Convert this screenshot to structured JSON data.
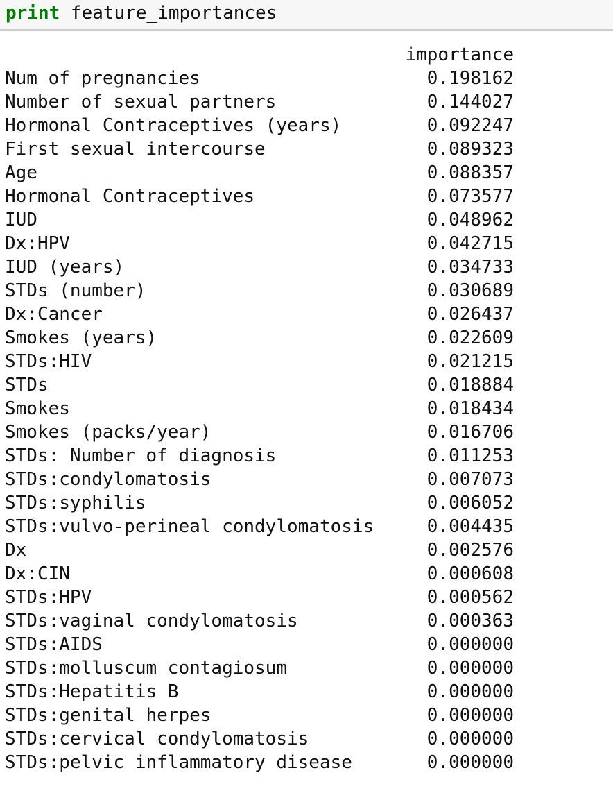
{
  "code": {
    "keyword": "print",
    "statement": " feature_importances"
  },
  "output": {
    "header": "importance",
    "rows": [
      {
        "feature": "Num of pregnancies",
        "importance": "0.198162"
      },
      {
        "feature": "Number of sexual partners",
        "importance": "0.144027"
      },
      {
        "feature": "Hormonal Contraceptives (years)",
        "importance": "0.092247"
      },
      {
        "feature": "First sexual intercourse",
        "importance": "0.089323"
      },
      {
        "feature": "Age",
        "importance": "0.088357"
      },
      {
        "feature": "Hormonal Contraceptives",
        "importance": "0.073577"
      },
      {
        "feature": "IUD",
        "importance": "0.048962"
      },
      {
        "feature": "Dx:HPV",
        "importance": "0.042715"
      },
      {
        "feature": "IUD (years)",
        "importance": "0.034733"
      },
      {
        "feature": "STDs (number)",
        "importance": "0.030689"
      },
      {
        "feature": "Dx:Cancer",
        "importance": "0.026437"
      },
      {
        "feature": "Smokes (years)",
        "importance": "0.022609"
      },
      {
        "feature": "STDs:HIV",
        "importance": "0.021215"
      },
      {
        "feature": "STDs",
        "importance": "0.018884"
      },
      {
        "feature": "Smokes",
        "importance": "0.018434"
      },
      {
        "feature": "Smokes (packs/year)",
        "importance": "0.016706"
      },
      {
        "feature": "STDs: Number of diagnosis",
        "importance": "0.011253"
      },
      {
        "feature": "STDs:condylomatosis",
        "importance": "0.007073"
      },
      {
        "feature": "STDs:syphilis",
        "importance": "0.006052"
      },
      {
        "feature": "STDs:vulvo-perineal condylomatosis",
        "importance": "0.004435"
      },
      {
        "feature": "Dx",
        "importance": "0.002576"
      },
      {
        "feature": "Dx:CIN",
        "importance": "0.000608"
      },
      {
        "feature": "STDs:HPV",
        "importance": "0.000562"
      },
      {
        "feature": "STDs:vaginal condylomatosis",
        "importance": "0.000363"
      },
      {
        "feature": "STDs:AIDS",
        "importance": "0.000000"
      },
      {
        "feature": "STDs:molluscum contagiosum",
        "importance": "0.000000"
      },
      {
        "feature": "STDs:Hepatitis B",
        "importance": "0.000000"
      },
      {
        "feature": "STDs:genital herpes",
        "importance": "0.000000"
      },
      {
        "feature": "STDs:cervical condylomatosis",
        "importance": "0.000000"
      },
      {
        "feature": "STDs:pelvic inflammatory disease",
        "importance": "0.000000"
      }
    ]
  },
  "colors": {
    "keyword": "#008000",
    "cell_background": "#f7f7f7",
    "cell_border": "#cfcfcf",
    "text": "#111111"
  }
}
